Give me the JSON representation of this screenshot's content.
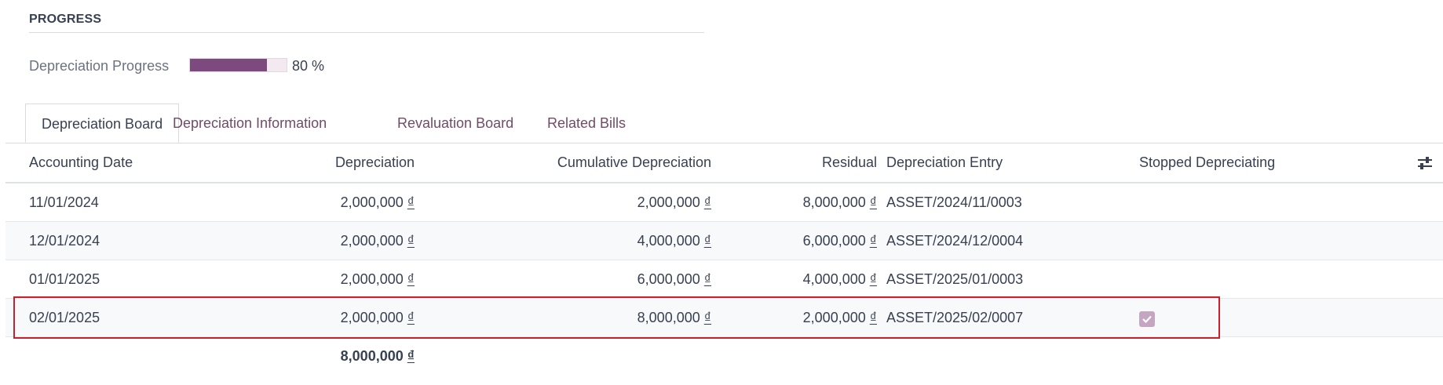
{
  "section": {
    "title": "PROGRESS"
  },
  "progress": {
    "label": "Depreciation Progress",
    "percent": 80,
    "value_text": "80 %",
    "fill_color": "#7c4a7e"
  },
  "tabs": [
    {
      "label": "Depreciation Board",
      "active": true
    },
    {
      "label": "Depreciation Information",
      "active": false
    },
    {
      "label": "Revaluation Board",
      "active": false
    },
    {
      "label": "Related Bills",
      "active": false
    }
  ],
  "table": {
    "headers": {
      "accounting_date": "Accounting Date",
      "depreciation": "Depreciation",
      "cumulative": "Cumulative Depreciation",
      "residual": "Residual",
      "entry": "Depreciation Entry",
      "stopped": "Stopped Depreciating",
      "options_icon": "sliders-icon"
    },
    "currency": "₫",
    "rows": [
      {
        "date": "11/01/2024",
        "depreciation": "2,000,000",
        "cumulative": "2,000,000",
        "residual": "8,000,000",
        "entry": "ASSET/2024/11/0003",
        "stopped": false
      },
      {
        "date": "12/01/2024",
        "depreciation": "2,000,000",
        "cumulative": "4,000,000",
        "residual": "6,000,000",
        "entry": "ASSET/2024/12/0004",
        "stopped": false
      },
      {
        "date": "01/01/2025",
        "depreciation": "2,000,000",
        "cumulative": "6,000,000",
        "residual": "4,000,000",
        "entry": "ASSET/2025/01/0003",
        "stopped": false
      },
      {
        "date": "02/01/2025",
        "depreciation": "2,000,000",
        "cumulative": "8,000,000",
        "residual": "2,000,000",
        "entry": "ASSET/2025/02/0007",
        "stopped": true
      }
    ],
    "total_depreciation": "8,000,000"
  },
  "highlight": {
    "color": "#cc1f2e"
  }
}
